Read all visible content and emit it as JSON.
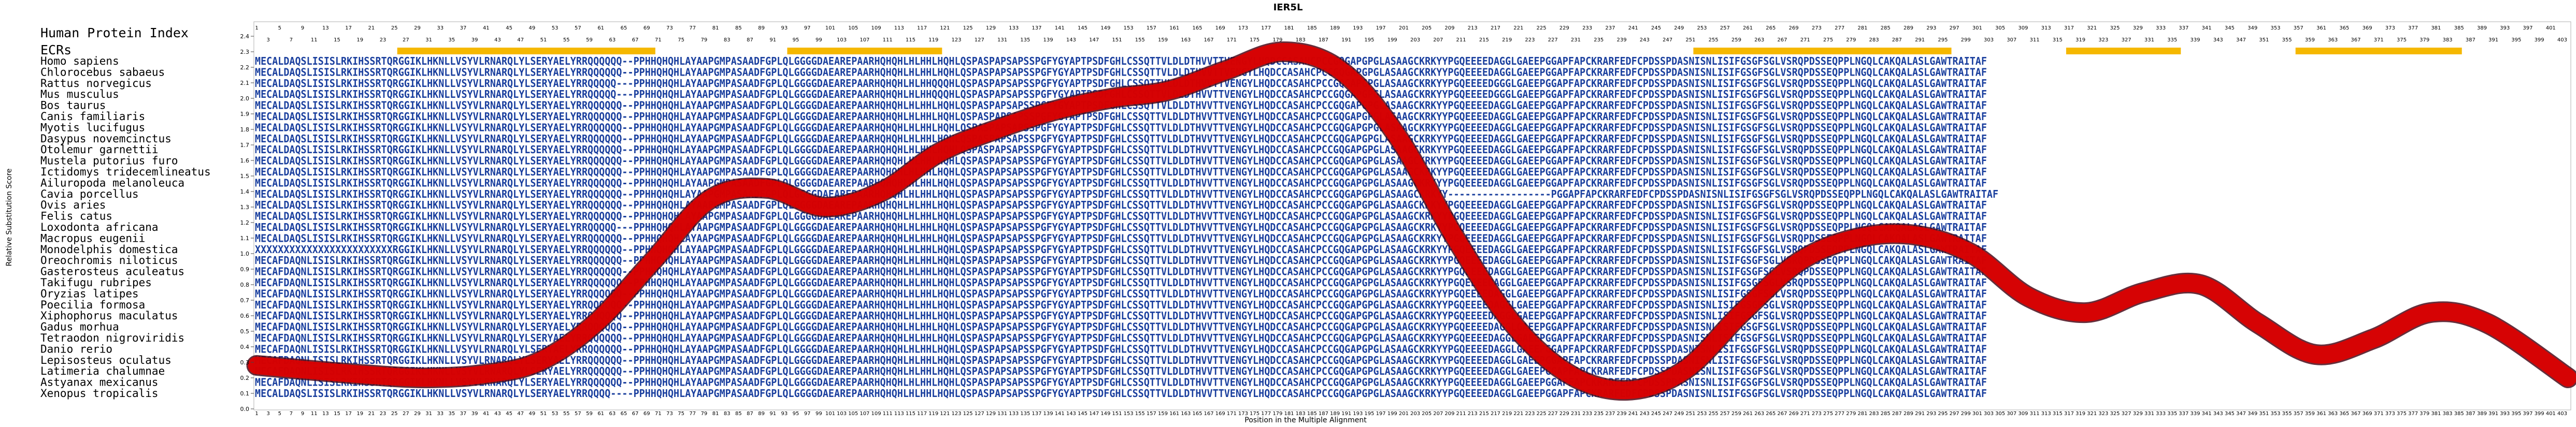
{
  "title": "IER5L",
  "header": {
    "index_label": "Human Protein Index",
    "ecr_label": "ECRs"
  },
  "axes": {
    "xlabel": "Position in the Multiple Alignment",
    "ylabel": "Relative Substitution Score"
  },
  "colors": {
    "ecr": "#f5b800",
    "aligned_text": "#1a3f9e",
    "divergent_text": "#4a9a78",
    "curve": "#e00000",
    "curve_edge": "#4a0a1a",
    "frame": "#b0b0b0"
  },
  "species": [
    "Homo sapiens",
    "Chlorocebus sabaeus",
    "Rattus norvegicus",
    "Mus musculus",
    "Bos taurus",
    "Canis familiaris",
    "Myotis lucifugus",
    "Dasypus novemcinctus",
    "Otolemur garnettii",
    "Mustela putorius furo",
    "Ictidomys tridecemlineatus",
    "Ailuropoda melanoleuca",
    "Cavia porcellus",
    "Ovis aries",
    "Felis catus",
    "Loxodonta africana",
    "Macropus eugenii",
    "Monodelphis domestica",
    "Oreochromis niloticus",
    "Gasterosteus aculeatus",
    "Takifugu rubripes",
    "Oryzias latipes",
    "Poecilia formosa",
    "Xiphophorus maculatus",
    "Gadus morhua",
    "Tetraodon nigroviridis",
    "Danio rerio",
    "Lepisosteus oculatus",
    "Latimeria chalumnae",
    "Astyanax mexicanus",
    "Xenopus tropicalis"
  ],
  "sequences": [
    "MECALDAQSLISISLRKIHSSRTQRGGIKLHKNLLVSYVLRNARQLYLSERYAELYRRQQQQQQ--PPHHQHQHLAYAAPGMPASAADFGPLQLGGGGDAEAREPAARHQHQHLHLHHLHQHLQSPASPAPSAPSSPGFYGYAPTPSDFGHLCSSQTTVLDLDTHVVTTVENGYLHQDCCASAHCPCCGQGAPGPGLASAAGCKRKYYPGQEEEEDAGGLGAEEPGGAPFAPCKRARFEDFCPDSSPDASNISNLISIFGSGFSGLVSRQPDSSEQPPLNGQLCAKQALASLGAWTRAITAF",
    "MECALDAQSLISISLRKIHSSRTQRGGIKLHKNLLVSYVLRNARQLYLSERYAELYRRQQQQQQ--PPHHQHQHLAYAAPGMPASAADFGPLQLGGGGDAEAREPAARHQHQHLHLHHLHQHLQSPASPAPSAPSSPGFYGYAPTPSDFGHLCSSQTTVLDLDTHVVTTVENGYLHQDCCASAHCPCCGQGAPGPGLASAAGCKRKYYPGQEEEEDAGGLGAEEPGGAPFAPCKRARFEDFCPDSSPDASNISNLISIFGSGFSGLVSRQPDSSEQPPLNGQLCAKQALASLGAWTRAITAF",
    "MECALDAQSLISISLRKIHSSRTQRGGIKLHKNLLVSYVLRNARQLYLSERYAELYRRQQQQQ---PPHHQHQHLAYAAPGMPASAADFGPLQLGGGGDAEAREPAARHQHQHLHLHHQQQHLQSPASPAPSAPSSPGFYGYAPTPSDFGHLCSSQTTVLDLDTHVVTTVENGYLHQDCCASAHCPCCGQGAPGPGLASAAGCKRKYYPGQEEEEDGGGLGAEEPGGAPFAPCKRARFEDFCPDSSPDASNISNLISIFGSGFSGLVSRQPDSSEQPPLNGQLCAKQALASLGAWTRAITAF",
    "MECALDAQSLISISLRKIHSSRTQRGGIKLHKNLLVSYVLRNARQLYLSERYAELYRRQQQQQ---PPHHQHQHLAYAAPGMPASAADFGPLQLGGGGDAEAREPAARHQHQHLHLHHQQQHLQSPASPAPSAPSSPGFYGYAPTPSDFGHLCSSQTTVLDLDTHVVTTVENGYLHQDCCASAHCPCCGQGAPGPGLASAAGCKRKYYPGQEEEEDGGGLGAEEPGGAPFAPCKRARFEDFCPDSSPDASNISNLISIFGSGFSGLVSRQPDSSEQPPLNGQLCAKQALASLGAWTRAITAF",
    "MECALDAQSLISISLRKIHSSRTQRGGIKLHKNLLVSYVLRNARQLYLSERYAELYRRQQQQQQ--PPHHQHQHLAYAAPGMPASAADFGPLQLGGGGDAEAREPAARHQHQHLHLHHLHQHLQSPASPAPSAPSSPGFYGYAPTPSDFGHLCSSQTTVLDLDTHVVTTVENGYLHQDCCASAHCPCCGQGAPGPGLASAAGCKRKYYPGQEEEEDAGGLGAEEPGGAPFAPCKRARFEDFCPDSSPDASNISNLISIFGSGFSGLVSRQPDSSEQPPLNGQLCAKQALASLGAWTRAITAF",
    "MECALDAQSLISISLRKIHSSRTQRGGIKLHKNLLVSYVLRNARQLYLSERYAELYRRQQQQQQ--PPHHQHQHLAYAAPGMPASAADFGPLQLGGGGDAEAREPAARHQHQHLHLHHLHQHLQSPASPAPSAPSSPGFYGYAPTPSDFGHLCSSQTTVLDLDTHVVTTVENGYLHQDCCASAHCPCCGQGAPGPGLASAAGCKRKYYPGQEEEEDAGGLGAEEPGGAPFAPCKRARFEDFCPDSSPDASNISNLISIFGSGFSGLVSRQPDSSEQPPLNGQLCAKQALASLGAWTRAITAF",
    "MECALDAQSLISISLRKIHSSRTQRGGIKLHKNLLVSYVLRNARQLYLSERYAELYRRQQQQQQ--PPHHQHQHLAYAAPGMPASAADFGPLQLGGGGDAEAREPAARHQHQHLHLHHLHQHLQSPASPAPSAPSSPGFYGYAPTPSDFGHLCSSQTTVLDLDTHVVTTVENGYLHQDCCASAHCPCCGQGAPGPGLASAAGCKRKYYPGQEEEEDAGGLGAEEPGGAPFAPCKRARFEDFCPDSSPDASNISNLISIFGSGFSGLVSRQPDSSEQPPLNGQLCAKQALASLGAWTRAITAF",
    "MECALDAQSLISISLRKIHSSRTQRGGIKLHKNLLVSYVLRNARQLYLSERYAELYRRQQQQQQ--PPHHQHQHLAYAAPGMPASAADFGPLQLGGGGDAEAREPAARHQHQHLHLHHLHQHLQSPASPAPSAPSSPGFYGYAPTPSDFGHLCSSQTTVLDLDTHVVTTVENGYLHQDCCASAHCPCCGQGAPGPGLASAAGCKRKYYPGQEEEEDAGGLGAEEPGGAPFAPCKRARFEDFCPDSSPDASNISNLISIFGSGFSGLVSRQPDSSEQPPLNGQLCAKQALASLGAWTRAITAF",
    "MECALDAQSLISISLRKIHSSRTQRGGIKLHKNLLVSYVLRNARQLYLSERYAELYRRQQQQQQ--PPHHQHQHLAYAAPGMPASAADFGPLQLGGGGDAEAREPAARHQHQHLHLHHLHQHLQSPASPAPSAPSSPGFYGYAPTPSDFGHLCSSQTTVLDLDTHVVTTVENGYLHQDCCASAHCPCCGQGAPGPGLASAAGCKRKYYPGQEEEEDAGGLGAEEPGGAPFAPCKRARFEDFCPDSSPDASNISNLISIFGSGFSGLVSRQPDSSEQPPLNGQLCAKQALASLGAWTRAITAF",
    "MECALDAQSLISISLRKIHSSRTQRGGIKLHKNLLVSYVLRNARQLYLSERYAELYRRQQQQQQ--PPHHQHQHLAYAAPGMPASAADFGPLQLGGGGDAEAREPAARHQHQHLHLHHLHQHLQSPASPAPSAPSSPGFYGYAPTPSDFGHLCSSQTTVLDLDTHVVTTVENGYLHQDCCASAHCPCCGQGAPGPGLASAAGCKRKYYPGQEEEEDAGGLGAEEPGGAPFAPCKRARFEDFCPDSSPDASNISNLISIFGSGFSGLVSRQPDSSEQPPLNGQLCAKQALASLGAWTRAITAF",
    "MECALDAQSLISISLRKIHSSRTQRGGIKLHKNLLVSYVLRNARQLYLSERYAELYRRQQQQQQ--PPHHQHQHLAYAAPGMPASAADFGPLQLGGGGDAEAREPAARHQHQHLHLHHLHQHLQSPASPAPSAPSSPGFYGYAPTPSDFGHLCSSQTTVLDLDTHVVTTVENGYLHQDCCASAHCPCCGQGAPGPGLASAAGCKRKYYPGQEEEEDAGGLGAEEPGGAPFAPCKRARFEDFCPDSSPDASNISNLISIFGSGFSGLVSRQPDSSEQPPLNGQLCAKQALASLGAWTRAITAF",
    "MECALDAQSLISISLRKIHSSRTQRGGIKLHKNLLVSYVLRNARQLYLSERYAELYRRQQQQQQ--PPHHQHQHLAYAAPGMPASAADFGPLQLGGGGDAEAREPAARHQHQHLHLHHLHQHLQSPASPAPSAPSSPGFYGYAPTPSDFGHLCSSQTTVLDLDTHVVTTVENGYLHQDCCASAHCPCCGQGAPGPGLASAAGCKRKYYPGQEEEEDAGGLGAEEPGGAPFAPCKRARFEDFCPDSSPDASNISNLISIFGSGFSGLVSRQPDSSEQPPLNGQLCAKQALASLGAWTRAITAF",
    "MECALDAQSLISISLRKIHSSRTQRGGIKLHKNLLVSYVLRNARQLYLSERYAELYRRQQQQQQ--PPHHQHQHLAYAAPGMPASAADFGPLQLGGGGDAEAREPAARHQHQHLHLHHLHQHLQSPASPAPSAPSSPGFYGYAPTPSDFGHLCSSQTTVLDLDTHVVTTVENGYLHQDCCASAHCPCCGQGAPGPGLASAAGCKRKYY------------------PGGAPFAPCKRARFEDFCPDSSPDASNISNLISIFGSGFSGLVSRQPDSSEQPPLNGQLCAKQALASLGAWTRAITAF",
    "MECALDAQSLISISLRKIHSSRTQRGGIKLHKNLLVSYVLRNARQLYLSERYAELYRRQQQQQQ--PPHHQHQHLAYAAPGMPASAADFGPLQLGGGGDAEAREPAARHQHQHLHLHHLHQHLQSPASPAPSAPSSPGFYGYAPTPSDFGHLCSSQTTVLDLDTHVVTTVENGYLHQDCCASAHCPCCGQGAPGPGLASAAGCKRKYYPGQEEEEDAGGLGAEEPGGAPFAPCKRARFEDFCPDSSPDASNISNLISIFGSGFSGLVSRQPDSSEQPPLNGQLCAKQALASLGAWTRAITAF",
    "MECALDAQSLISISLRKIHSSRTQRGGIKLHKNLLVSYVLRNARQLYLSERYAELYRRQQQQQQ--PPHHQHQHLAYAAPGMPASAADFGPLQLGGGGDAEAREPAARHQHQHLHLHHLHQHLQSPASPAPSAPSSPGFYGYAPTPSDFGHLCSSQTTVLDLDTHVVTTVENGYLHQDCCASAHCPCCGQGAPGPGLASAAGCKRKYYPGQEEEEDAGGLGAEEPGGAPFAPCKRARFEDFCPDSSPDASNISNLISIFGSGFSGLVSRQPDSSEQPPLNGQLCAKQALASLGAWTRAITAF",
    "MECALDAQSLISISLRKIHSSRTQRGGIKLHKNLLVSYVLRNARQLYLSERYAELYRRQQQQQ---PPHHQHQHLAYAAPGMPASAADFGPLQLGGGGDAEAREPAARHQHQHLHLHHLHQHLQSPASPAPSAPSSPGFYGYAPTPSDFGHLCSSQTTVLDLDTHVVTTVENGYLHQDCCASAHCPCCGQGAPGPGLASAAGCKRKYYPGQEEEEDAGGLGAEEPGGAPFAPCKRARFEDFCPDSSPDASNISNLISIFGSGFSGLVSRQPDSSEQPPLNGQLCAKQALASLGAWTRAITAF",
    "MECALDAQSLISISLRKIHSSRTQRGGIKLHKNLLVSYVLRNARQLYLSERYAELYRRQQQQQQ--PPHHQHQHLAYAAPGMPASAADFGPLQLGGGGDAEAREPAARHQHQHLHLHHLHQHLQSPASPAPSAPSSPGFYGYAPTPSDFGHLCSSQTTVLDLDTHVVTTVENGYLHQDCCASAHCPCCGQGAPGPGLASAAGCKRKYYPGQEEEEDAGGLGAEEPGGAPFAPCKRARFEDFCPDSSPDASNISNLISIFGSGFSGLVSRQPDSSEQPPLNGQLCAKQALASLGAWTRAITAF",
    "XXXXXXXXXXXXXXXXXXXXXXXXRGGIKLHKNLLVSYVLRNARQLYLSERYAELYRRQQQQQQ--PPHHQHQHLAYAAPGMPASAADFGPLQLGGGGDAEAREPAARHQHQHLHLHHLHQHLQSPASPAPSAPSSPGFYGYAPTPSDFGHLCSSQTTVLDLDTHVVTTVENGYLHQDCCASAHCPCCGQGAPGPGLASAAGCKRKYYPGQEEEEDAGGLGAEEPGGAPFAPCKRARFEDFCPDSSPDASNISNLISIFGSGFSGLVSRQPDSSEQPPLNGQLCAKQALASLGAWTRAITAF",
    "MECAFDAQNLISISLRKIHSSRTQRGGIKLHKNLLVSYVLRNARQLYLSERYAELYRRQQQQQQ--PPHHQHQHLAYAAPGMPASAADFGPLQLGGGGDAEAREPAARHQHQHLHLHHLHQHLQSPASPAPSAPSSPGFYGYAPTPSDFGHLCSSQTTVLDLDTHVVTTVENGYLHQDCCASAHCPCCGQGAPGPGLASAAGCKRKYYPGQEEEEDAGGLGAEEPGGAPFAPCKRARFEDFCPDSSPDASNISNLISIFGSGFSGLVSRQPDSSEQPPLNGQLCAKQALASLGAWTRAITAF",
    "MECAFDAQNLISISLRKIHSSRTQRGGIKLHKNLLVSYVLRNARQLYLSERYAELYRRQQQQQQ--PPHHQHQHLAYAAPGMPASAADFGPLQLGGGGDAEAREPAARHQHQHLHLHHLHQHLQSPASPAPSAPSSPGFYGYAPTPSDFGHLCSSQTTVLDLDTHVVTTVENGYLHQDCCASAHCPCCGQGAPGPGLASAAGCKRKYYPGQEEEEDAGGLGAEEPGGAPFAPCKRARFEDFCPDSSPDASNISNLISIFGSGFSGLVSRQPDSSEQPPLNGQLCAKQALASLGAWTRAITAF",
    "MECAFDAQNLISISLRKIHSSRTQRGGIKLHKNLLVSYVLRNARQLYLSERYAELYRRQQQQQQ--PPHHQHQHLAYAAPGMPASAADFGPLQLGGGGDAEAREPAARHQHQHLHLHHLHQHLQSPASPAPSAPSSPGFYGYAPTPSDFGHLCSSQTTVLDLDTHVVTTVENGYLHQDCCASAHCPCCGQGAPGPGLASAAGCKRKYYPGQEEEEDAGGLGAEEPGGAPFAPCKRARFEDFCPDSSPDASNISNLISIFGSGFSGLVSRQPDSSEQPPLNGQLCAKQALASLGAWTRAITAF",
    "MECAFDAQNLISISLRKIHSSRTQRGGIKLHKNLLVSYVLRNARQLYLSERYAELYRRQQQQQQ--PPHHQHQHLAYAAPGMPASAADFGPLQLGGGGDAEAREPAARHQHQHLHLHHLHQHLQSPASPAPSAPSSPGFYGYAPTPSDFGHLCSSQTTVLDLDTHVVTTVENGYLHQDCCASAHCPCCGQGAPGPGLASAAGCKRKYYPGQEEEEDAGGLGAEEPGGAPFAPCKRARFEDFCPDSSPDASNISNLISIFGSGFSGLVSRQPDSSEQPPLNGQLCAKQALASLGAWTRAITAF",
    "MECAFDAQNLISISLRKIHSSRTQRGGIKLHKNLLVSYVLRNARQLYLSERYAELYRRQQQQQQ--PPHHQHQHLAYAAPGMPASAADFGPLQLGGGGDAEAREPAARHQHQHLHLHHLHQHLQSPASPAPSAPSSPGFYGYAPTPSDFGHLCSSQTTVLDLDTHVVTTVENGYLHQDCCASAHCPCCGQGAPGPGLASAAGCKRKYYPGQEEEEDAGGLGAEEPGGAPFAPCKRARFEDFCPDSSPDASNISNLISIFGSGFSGLVSRQPDSSEQPPLNGQLCAKQALASLGAWTRAITAF",
    "MECAFDAQNLISISLRKIHSSRTQRGGIKLHKNLLVSYVLRNARQLYLSERYAELYRRQQQQQQ--PPHHQHQHLAYAAPGMPASAADFGPLQLGGGGDAEAREPAARHQHQHLHLHHLHQHLQSPASPAPSAPSSPGFYGYAPTPSDFGHLCSSQTTVLDLDTHVVTTVENGYLHQDCCASAHCPCCGQGAPGPGLASAAGCKRKYYPGQEEEEDAGGLGAEEPGGAPFAPCKRARFEDFCPDSSPDASNISNLISIFGSGFSGLVSRQPDSSEQPPLNGQLCAKQALASLGAWTRAITAF",
    "MECAFDAQNLISISLRKIHSSRTQRGGIKLHKNLLVSYVLRNARQLYLSERYAELYRRQQQQQQ--PPHHQHQHLAYAAPGMPASAADFGPLQLGGGGDAEAREPAARHQHQHLHLHHLHQHLQSPASPAPSAPSSPGFYGYAPTPSDFGHLCSSQTTVLDLDTHVVTTVENGYLHQDCCASAHCPCCGQGAPGPGLASAAGCKRKYYPGQEEEEDAGGLGAEEPGGAPFAPCKRARFEDFCPDSSPDASNISNLISIFGSGFSGLVSRQPDSSEQPPLNGQLCAKQALASLGAWTRAITAF",
    "MECAFDAQNLISISLRKIHSSRTQRGGIKLHKNLLVSYVLRNARQLYLSERYAELYRRQQQQQQ--PPHHQHQHLAYAAPGMPASAADFGPLQLGGGGDAEAREPAARHQHQHLHLHHLHQHLQSPASPAPSAPSSPGFYGYAPTPSDFGHLCSSQTTVLDLDTHVVTTVENGYLHQDCCASAHCPCCGQGAPGPGLASAAGCKRKYYPGQEEEEDAGGLGAEEPGGAPFAPCKRARFEDFCPDSSPDASNISNLISIFGSGFSGLVSRQPDSSEQPPLNGQLCAKQALASLGAWTRAITAF",
    "MECAFDAQNLISISLRKIHSSRTQRGGIKLHKNLLVSYVLRNARQLYLSERYAELYRRQQQQQQ--PPHHQHQHLAYAAPGMPASAADFGPLQLGGGGDAEAREPAARHQHQHLHLHHLHQHLQSPASPAPSAPSSPGFYGYAPTPSDFGHLCSSQTTVLDLDTHVVTTVENGYLHQDCCASAHCPCCGQGAPGPGLASAAGCKRKYYPGQEEEEDAGGLGAEEPGGAPFAPCKRARFEDFCPDSSPDASNISNLISIFGSGFSGLVSRQPDSSEQPPLNGQLCAKQALASLGAWTRAITAF",
    "MECAFDAQNLISISLRKIHSSRTQRGGIKLHKNLLVSYVLRNARQLYLSERYAELYRRQQQQQQ--PPHHQHQHLAYAAPGMPASAADFGPLQLGGGGDAEAREPAARHQHQHLHLHHLHQHLQSPASPAPSAPSSPGFYGYAPTPSDFGHLCSSQTTVLDLDTHVVTTVENGYLHQDCCASAHCPCCGQGAPGPGLASAAGCKRKYYPGQEEEEDAGGLGAEEPGGAPFAPCKRARFEDFCPDSSPDASNISNLISIFGSGFSGLVSRQPDSSEQPPLNGQLCAKQALASLGAWTRAITAF",
    "MECAFDAQNLISISLRKIHSSRTQRGGIKLHKNLLVSYVLRNARQLYLSERYAELYRRQQQQQQ--PPHHQHQHLAYAAPGMPASAADFGPLQLGGGGDAEAREPAARHQHQHLHLHHLHQHLQSPASPAPSAPSSPGFYGYAPTPSDFGHLCSSQTTVLDLDTHVVTTVENGYLHQDCCASAHCPCCGQGAPGPGLASAAGCKRKYYPGQEEEEDAGGLGAEEPGGAPFAPCKRARFEDFCPDSSPDASNISNLISIFGSGFSGLVSRQPDSSEQPPLNGQLCAKQALASLGAWTRAITAF",
    "MECAFDAQNLISISLRKIHSSRTQRGGIKLHKNLLVSYVLRNARQLYLSERYAELYRRQQQQQQ--PPHHQHQHLAYAAPGMPASAADFGPLQLGGGGDAEAREPAARHQHQHLHLHHLHQHLQSPASPAPSAPSSPGFYGYAPTPSDFGHLCSSQTTVLDLDTHVVTTVENGYLHQDCCASAHCPCCGQGAPGPGLASAAGCKRKYYPGQEEEEDAGGLGAEEPGGAPFAPCKRARFEDFCPDSSPDASNISNLISIFGSGFSGLVSRQPDSSEQPPLNGQLCAKQALASLGAWTRAITAF",
    "MECALDAQSLISISLRKIHSSRTQRGGIKLHKNLLVSYVLRNARQLYLSERYAELYRRQQQQ----PPHHQHQHLAYAAPGMPASAADFGPLQLGGGGDAEAREPAARHQHQHLHLHHLHQHLQSPASPAPSAPSSPGFYGYAPTPSDFGHLCSSQTTVLDLDTHVVTTVENGYLHQDCCASAHCPCCGQGAPGPGLASAAGCKRKYYPGQEEEEDAGGLGAEEPGGAPFAPCKRARFEDFCPDSSPDASNISNLISIFGSGFSGLVSRQPDSSEQPPLNGQLCAKQALASLGAWTRAITAF"
  ],
  "chart_data": {
    "type": "line",
    "title": "IER5L",
    "xlabel": "Position in the Multiple Alignment",
    "ylabel": "Relative Substitution Score",
    "xlim": [
      1,
      404
    ],
    "ylim": [
      0.0,
      2.4
    ],
    "y_ticks": [
      0.0,
      0.1,
      0.2,
      0.3,
      0.4,
      0.5,
      0.6,
      0.7,
      0.8,
      0.9,
      1.0,
      1.1,
      1.2,
      1.3,
      1.4,
      1.5,
      1.6,
      1.7,
      1.8,
      1.9,
      2.0,
      2.1,
      2.2,
      2.3,
      2.4
    ],
    "grid": false,
    "ecr_ranges": [
      [
        26,
        70
      ],
      [
        94,
        120
      ],
      [
        252,
        296
      ],
      [
        317,
        336
      ],
      [
        357,
        385
      ]
    ],
    "series": [
      {
        "x": [
          1,
          10,
          20,
          30,
          40,
          50,
          60,
          70,
          80,
          90,
          100,
          110,
          120,
          130,
          140,
          150,
          160,
          170,
          180,
          190,
          200,
          210,
          220,
          230,
          240,
          250,
          260,
          270,
          280,
          290,
          300,
          310,
          320,
          330,
          340,
          350,
          360,
          370,
          380,
          390,
          404
        ],
        "values": [
          0.28,
          0.25,
          0.22,
          0.2,
          0.22,
          0.3,
          0.55,
          0.95,
          1.35,
          1.42,
          1.3,
          1.4,
          1.65,
          1.8,
          1.92,
          2.0,
          2.05,
          2.18,
          2.3,
          2.18,
          1.75,
          1.1,
          0.55,
          0.22,
          0.12,
          0.25,
          0.62,
          0.95,
          1.1,
          1.12,
          1.0,
          0.72,
          0.62,
          0.75,
          0.8,
          0.55,
          0.35,
          0.45,
          0.62,
          0.55,
          0.2
        ]
      }
    ]
  }
}
